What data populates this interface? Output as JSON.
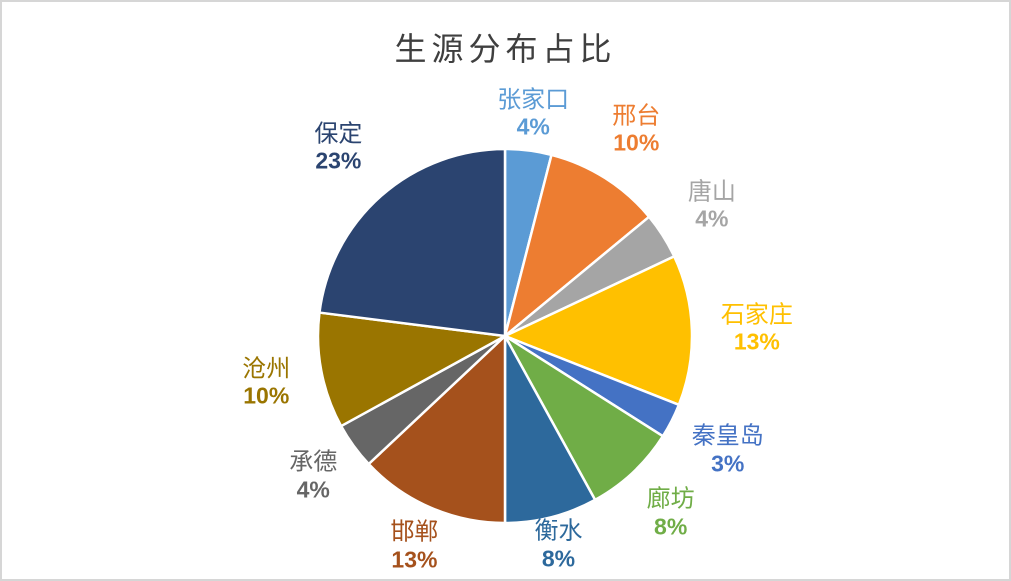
{
  "frame": {
    "border_color": "#d6d6d6",
    "background": "#ffffff"
  },
  "chart_data": {
    "type": "pie",
    "title": "生源分布占比",
    "title_color": "#3f3f3f",
    "start_angle_deg": 0,
    "direction": "clockwise",
    "labels_position": "outside-end",
    "label_format": "category + percent",
    "total": 100,
    "slices": [
      {
        "label": "张家口",
        "value": 4,
        "display": "4%",
        "color": "#5B9BD5"
      },
      {
        "label": "邢台",
        "value": 10,
        "display": "10%",
        "color": "#ED7D31"
      },
      {
        "label": "唐山",
        "value": 4,
        "display": "4%",
        "color": "#A5A5A5"
      },
      {
        "label": "石家庄",
        "value": 13,
        "display": "13%",
        "color": "#FFC000"
      },
      {
        "label": "秦皇岛",
        "value": 3,
        "display": "3%",
        "color": "#4472C4"
      },
      {
        "label": "廊坊",
        "value": 8,
        "display": "8%",
        "color": "#70AD47"
      },
      {
        "label": "衡水",
        "value": 8,
        "display": "8%",
        "color": "#2D699C"
      },
      {
        "label": "邯郸",
        "value": 13,
        "display": "13%",
        "color": "#A5511C"
      },
      {
        "label": "承德",
        "value": 4,
        "display": "4%",
        "color": "#666666"
      },
      {
        "label": "沧州",
        "value": 10,
        "display": "10%",
        "color": "#9A7500"
      },
      {
        "label": "保定",
        "value": 23,
        "display": "23%",
        "color": "#2B4470"
      }
    ]
  }
}
